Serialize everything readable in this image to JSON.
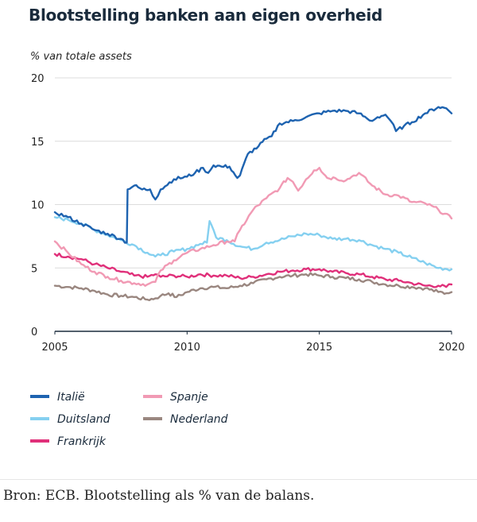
{
  "title": "Blootstelling banken aan eigen overheid",
  "caption": "Bron: ECB. Blootstelling als % van de balans.",
  "chart_data": {
    "type": "line",
    "ylabel": "% van totale assets",
    "xlabel": "",
    "xlim": [
      2005,
      2020
    ],
    "ylim": [
      0,
      20
    ],
    "xticks": [
      2005,
      2010,
      2015,
      2020
    ],
    "yticks": [
      0,
      5,
      10,
      15,
      20
    ],
    "grid": "horizontal",
    "legend_position": "bottom",
    "series": [
      {
        "name": "Italië",
        "color": "#1e63b0",
        "points": [
          [
            2005.0,
            9.4
          ],
          [
            2005.5,
            9.0
          ],
          [
            2006.0,
            8.5
          ],
          [
            2006.5,
            8.0
          ],
          [
            2007.0,
            7.7
          ],
          [
            2007.5,
            7.3
          ],
          [
            2007.72,
            7.0
          ],
          [
            2007.75,
            11.2
          ],
          [
            2008.0,
            11.5
          ],
          [
            2008.3,
            11.2
          ],
          [
            2008.6,
            11.2
          ],
          [
            2008.8,
            10.4
          ],
          [
            2009.0,
            11.2
          ],
          [
            2009.5,
            12.0
          ],
          [
            2010.0,
            12.2
          ],
          [
            2010.3,
            12.5
          ],
          [
            2010.6,
            12.9
          ],
          [
            2010.8,
            12.5
          ],
          [
            2011.0,
            13.1
          ],
          [
            2011.3,
            13.0
          ],
          [
            2011.6,
            13.0
          ],
          [
            2011.9,
            12.1
          ],
          [
            2012.0,
            12.3
          ],
          [
            2012.3,
            14.0
          ],
          [
            2012.7,
            14.6
          ],
          [
            2013.0,
            15.2
          ],
          [
            2013.2,
            15.4
          ],
          [
            2013.5,
            16.4
          ],
          [
            2014.0,
            16.6
          ],
          [
            2014.5,
            16.9
          ],
          [
            2015.0,
            17.2
          ],
          [
            2015.5,
            17.4
          ],
          [
            2016.0,
            17.4
          ],
          [
            2016.5,
            17.2
          ],
          [
            2016.8,
            16.8
          ],
          [
            2017.0,
            16.6
          ],
          [
            2017.2,
            16.9
          ],
          [
            2017.5,
            17.1
          ],
          [
            2017.7,
            16.6
          ],
          [
            2017.9,
            15.8
          ],
          [
            2018.2,
            16.2
          ],
          [
            2018.5,
            16.5
          ],
          [
            2019.0,
            17.2
          ],
          [
            2019.5,
            17.7
          ],
          [
            2019.8,
            17.6
          ],
          [
            2020.0,
            17.2
          ]
        ]
      },
      {
        "name": "Duitsland",
        "color": "#85d0f0",
        "points": [
          [
            2005.0,
            9.0
          ],
          [
            2005.5,
            8.8
          ],
          [
            2006.0,
            8.5
          ],
          [
            2006.5,
            8.0
          ],
          [
            2007.0,
            7.6
          ],
          [
            2007.5,
            7.2
          ],
          [
            2008.0,
            6.8
          ],
          [
            2008.5,
            6.2
          ],
          [
            2008.8,
            5.9
          ],
          [
            2009.0,
            6.0
          ],
          [
            2009.5,
            6.3
          ],
          [
            2010.0,
            6.5
          ],
          [
            2010.5,
            6.9
          ],
          [
            2010.75,
            7.0
          ],
          [
            2010.85,
            8.7
          ],
          [
            2011.0,
            8.0
          ],
          [
            2011.1,
            7.4
          ],
          [
            2011.5,
            7.2
          ],
          [
            2012.0,
            6.7
          ],
          [
            2012.5,
            6.5
          ],
          [
            2013.0,
            7.0
          ],
          [
            2013.5,
            7.2
          ],
          [
            2014.0,
            7.5
          ],
          [
            2014.5,
            7.7
          ],
          [
            2015.0,
            7.6
          ],
          [
            2015.5,
            7.3
          ],
          [
            2016.0,
            7.3
          ],
          [
            2016.5,
            7.2
          ],
          [
            2017.0,
            6.8
          ],
          [
            2017.5,
            6.5
          ],
          [
            2018.0,
            6.2
          ],
          [
            2018.5,
            5.8
          ],
          [
            2019.0,
            5.4
          ],
          [
            2019.5,
            5.0
          ],
          [
            2020.0,
            4.9
          ]
        ]
      },
      {
        "name": "Frankrijk",
        "color": "#e0307a",
        "points": [
          [
            2005.0,
            6.1
          ],
          [
            2005.5,
            5.9
          ],
          [
            2006.0,
            5.7
          ],
          [
            2006.5,
            5.3
          ],
          [
            2007.0,
            5.0
          ],
          [
            2007.5,
            4.7
          ],
          [
            2008.0,
            4.4
          ],
          [
            2008.5,
            4.3
          ],
          [
            2008.8,
            4.5
          ],
          [
            2009.0,
            4.3
          ],
          [
            2009.5,
            4.4
          ],
          [
            2010.0,
            4.3
          ],
          [
            2010.5,
            4.5
          ],
          [
            2011.0,
            4.4
          ],
          [
            2011.5,
            4.4
          ],
          [
            2012.0,
            4.2
          ],
          [
            2012.5,
            4.3
          ],
          [
            2013.0,
            4.5
          ],
          [
            2013.5,
            4.7
          ],
          [
            2014.0,
            4.8
          ],
          [
            2014.5,
            4.9
          ],
          [
            2015.0,
            4.9
          ],
          [
            2015.5,
            4.7
          ],
          [
            2016.0,
            4.6
          ],
          [
            2016.5,
            4.5
          ],
          [
            2017.0,
            4.3
          ],
          [
            2017.5,
            4.1
          ],
          [
            2018.0,
            4.0
          ],
          [
            2018.5,
            3.8
          ],
          [
            2019.0,
            3.6
          ],
          [
            2019.5,
            3.6
          ],
          [
            2019.8,
            3.5
          ],
          [
            2020.0,
            3.7
          ]
        ]
      },
      {
        "name": "Spanje",
        "color": "#f19ab4",
        "points": [
          [
            2005.0,
            7.1
          ],
          [
            2005.5,
            6.2
          ],
          [
            2006.0,
            5.3
          ],
          [
            2006.5,
            4.7
          ],
          [
            2007.0,
            4.3
          ],
          [
            2007.5,
            4.0
          ],
          [
            2008.0,
            3.8
          ],
          [
            2008.5,
            3.7
          ],
          [
            2008.8,
            3.9
          ],
          [
            2009.0,
            4.8
          ],
          [
            2009.5,
            5.6
          ],
          [
            2010.0,
            6.2
          ],
          [
            2010.5,
            6.5
          ],
          [
            2011.0,
            6.8
          ],
          [
            2011.5,
            7.1
          ],
          [
            2011.8,
            7.1
          ],
          [
            2012.0,
            8.0
          ],
          [
            2012.5,
            9.6
          ],
          [
            2013.0,
            10.5
          ],
          [
            2013.5,
            11.3
          ],
          [
            2013.8,
            12.1
          ],
          [
            2014.0,
            11.8
          ],
          [
            2014.2,
            11.1
          ],
          [
            2014.5,
            12.0
          ],
          [
            2014.8,
            12.7
          ],
          [
            2015.0,
            12.9
          ],
          [
            2015.3,
            12.1
          ],
          [
            2015.6,
            12.1
          ],
          [
            2016.0,
            11.9
          ],
          [
            2016.3,
            12.3
          ],
          [
            2016.5,
            12.5
          ],
          [
            2017.0,
            11.5
          ],
          [
            2017.5,
            10.8
          ],
          [
            2018.0,
            10.7
          ],
          [
            2018.5,
            10.2
          ],
          [
            2019.0,
            10.1
          ],
          [
            2019.5,
            9.6
          ],
          [
            2020.0,
            8.9
          ]
        ]
      },
      {
        "name": "Nederland",
        "color": "#9a8780",
        "points": [
          [
            2005.0,
            3.6
          ],
          [
            2005.5,
            3.5
          ],
          [
            2006.0,
            3.4
          ],
          [
            2006.5,
            3.2
          ],
          [
            2007.0,
            2.9
          ],
          [
            2007.5,
            2.8
          ],
          [
            2008.0,
            2.7
          ],
          [
            2008.5,
            2.5
          ],
          [
            2008.8,
            2.6
          ],
          [
            2009.0,
            2.8
          ],
          [
            2009.3,
            3.0
          ],
          [
            2009.6,
            2.7
          ],
          [
            2010.0,
            3.1
          ],
          [
            2010.5,
            3.4
          ],
          [
            2011.0,
            3.5
          ],
          [
            2011.5,
            3.4
          ],
          [
            2012.0,
            3.6
          ],
          [
            2012.5,
            3.8
          ],
          [
            2013.0,
            4.1
          ],
          [
            2013.5,
            4.3
          ],
          [
            2014.0,
            4.4
          ],
          [
            2014.5,
            4.5
          ],
          [
            2015.0,
            4.4
          ],
          [
            2015.5,
            4.3
          ],
          [
            2016.0,
            4.2
          ],
          [
            2016.5,
            4.1
          ],
          [
            2017.0,
            3.9
          ],
          [
            2017.5,
            3.7
          ],
          [
            2018.0,
            3.6
          ],
          [
            2018.5,
            3.5
          ],
          [
            2019.0,
            3.4
          ],
          [
            2019.5,
            3.1
          ],
          [
            2019.8,
            3.0
          ],
          [
            2020.0,
            3.1
          ]
        ]
      }
    ]
  }
}
